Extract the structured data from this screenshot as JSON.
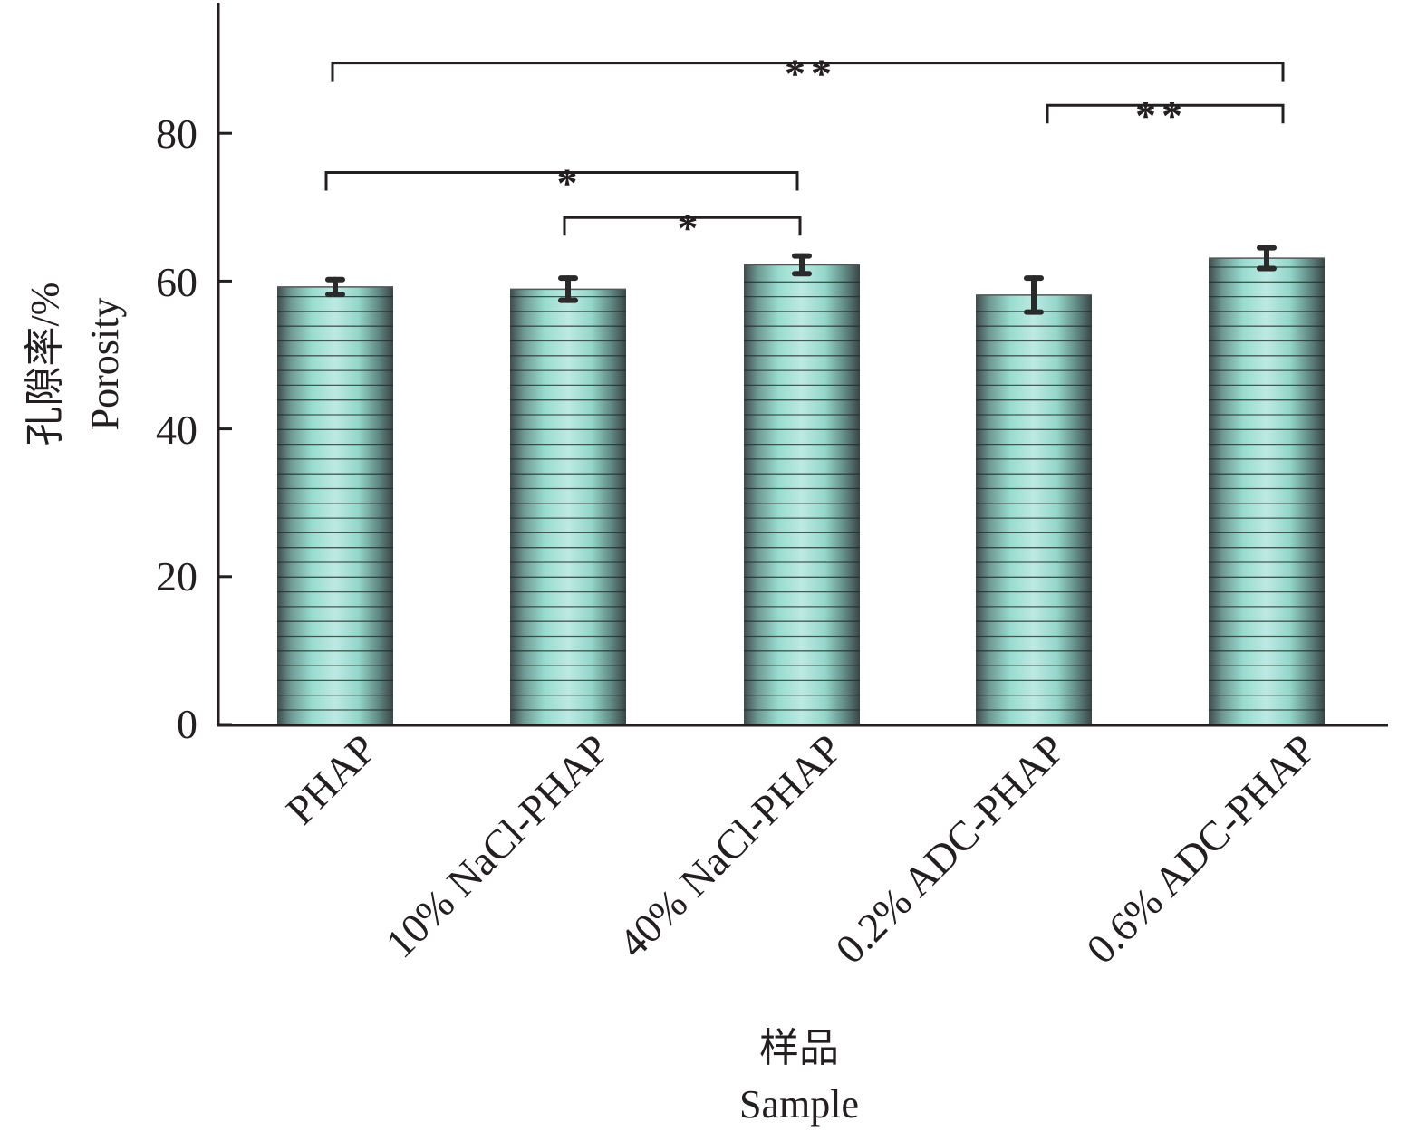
{
  "chart_data": {
    "type": "bar",
    "title": "",
    "categories": [
      "PHAP",
      "10% NaCl-PHAP",
      "40% NaCl-PHAP",
      "0.2% ADC-PHAP",
      "0.6% ADC-PHAP"
    ],
    "values": [
      59.2,
      58.9,
      62.2,
      58.1,
      63.1
    ],
    "errors": [
      1.0,
      1.5,
      1.2,
      2.3,
      1.4
    ],
    "ylim": [
      0,
      100
    ],
    "yticks": [
      0,
      20,
      40,
      60,
      80
    ],
    "ytick_labels": [
      "0",
      "20",
      "40",
      "60",
      "80"
    ],
    "ylabel_cn": "孔隙率/%",
    "ylabel": "Porosity",
    "xlabel_cn": "样品",
    "xlabel": "Sample",
    "grid": false,
    "significance": [
      {
        "from": 0,
        "to": 4,
        "label": "**",
        "level": 89.5
      },
      {
        "from": 3,
        "to": 4,
        "label": "**",
        "level": 83.8
      },
      {
        "from": 0,
        "to": 2,
        "label": "*",
        "level": 74.7
      },
      {
        "from": 1,
        "to": 2,
        "label": "*",
        "level": 68.6
      }
    ],
    "colors": {
      "bar_center": "#b8e6e0",
      "bar_mid": "#8fd4c8",
      "bar_edge": "#3d4a4a",
      "axis": "#231f20",
      "stripe": "#1f2a2a",
      "error": "#2a2a2a"
    }
  }
}
